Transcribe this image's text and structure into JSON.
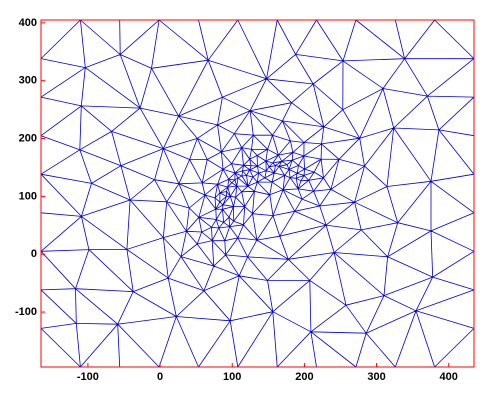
{
  "chart_data": {
    "type": "mesh",
    "xlim": [
      -165,
      435
    ],
    "ylim": [
      -195,
      405
    ],
    "xticks": [
      -100,
      0,
      100,
      200,
      300,
      400
    ],
    "yticks": [
      -100,
      0,
      100,
      200,
      300,
      400
    ],
    "color": "#0000c8",
    "axis_color": "#ff0000"
  }
}
